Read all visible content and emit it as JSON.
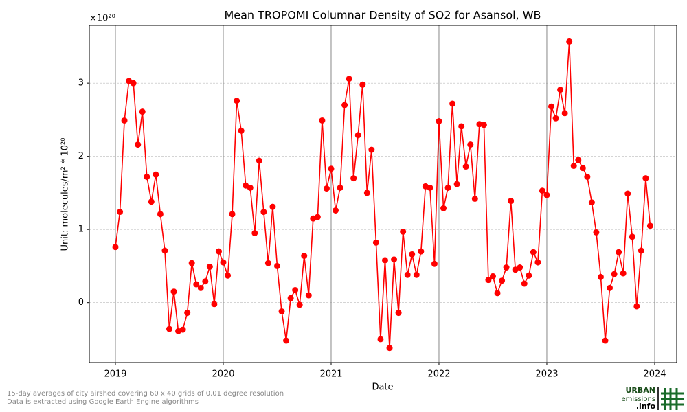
{
  "chart_data": {
    "type": "line",
    "title": "Mean TROPOMI Columnar Density of SO2 for Asansol, WB",
    "xlabel": "Date",
    "ylabel": "Unit: molecules/m² * 10²⁰",
    "y_offset_label": "×10²⁰",
    "color": "#ff0000",
    "grid": true,
    "xlim": [
      2018.758,
      2024.204
    ],
    "xticks": [
      2019,
      2020,
      2021,
      2022,
      2023,
      2024
    ],
    "ylim": [
      -0.82,
      3.79
    ],
    "yticks": [
      0,
      1,
      2,
      3
    ],
    "x": [
      2019.0,
      2019.0417,
      2019.0833,
      2019.125,
      2019.1667,
      2019.2083,
      2019.25,
      2019.2917,
      2019.3333,
      2019.375,
      2019.4167,
      2019.4583,
      2019.5,
      2019.5417,
      2019.5833,
      2019.625,
      2019.6667,
      2019.7083,
      2019.75,
      2019.7917,
      2019.8333,
      2019.875,
      2019.9167,
      2019.9583,
      2020.0,
      2020.0417,
      2020.0833,
      2020.125,
      2020.1667,
      2020.2083,
      2020.25,
      2020.2917,
      2020.3333,
      2020.375,
      2020.4167,
      2020.4583,
      2020.5,
      2020.5417,
      2020.5833,
      2020.625,
      2020.6667,
      2020.7083,
      2020.75,
      2020.7917,
      2020.8333,
      2020.875,
      2020.9167,
      2020.9583,
      2021.0,
      2021.0417,
      2021.0833,
      2021.125,
      2021.1667,
      2021.2083,
      2021.25,
      2021.2917,
      2021.3333,
      2021.375,
      2021.4167,
      2021.4583,
      2021.5,
      2021.5417,
      2021.5833,
      2021.625,
      2021.6667,
      2021.7083,
      2021.75,
      2021.7917,
      2021.8333,
      2021.875,
      2021.9167,
      2021.9583,
      2022.0,
      2022.0417,
      2022.0833,
      2022.125,
      2022.1667,
      2022.2083,
      2022.25,
      2022.2917,
      2022.3333,
      2022.375,
      2022.4167,
      2022.4583,
      2022.5,
      2022.5417,
      2022.5833,
      2022.625,
      2022.6667,
      2022.7083,
      2022.75,
      2022.7917,
      2022.8333,
      2022.875,
      2022.9167,
      2022.9583,
      2023.0,
      2023.0417,
      2023.0833,
      2023.125,
      2023.1667,
      2023.2083,
      2023.25,
      2023.2917,
      2023.3333,
      2023.375,
      2023.4167,
      2023.4583,
      2023.5,
      2023.5417,
      2023.5833,
      2023.625,
      2023.6667,
      2023.7083,
      2023.75,
      2023.7917,
      2023.8333,
      2023.875,
      2023.9167,
      2023.9583
    ],
    "values": [
      0.76,
      1.24,
      2.49,
      3.03,
      3.0,
      2.16,
      2.61,
      1.72,
      1.38,
      1.75,
      1.21,
      0.71,
      -0.36,
      0.15,
      -0.39,
      -0.37,
      -0.14,
      0.54,
      0.25,
      0.2,
      0.29,
      0.49,
      -0.02,
      0.7,
      0.55,
      0.37,
      1.21,
      2.76,
      2.35,
      1.6,
      1.57,
      0.95,
      1.94,
      1.24,
      0.54,
      1.31,
      0.5,
      -0.12,
      -0.52,
      0.06,
      0.17,
      -0.03,
      0.64,
      0.1,
      1.15,
      1.17,
      2.49,
      1.56,
      1.83,
      1.26,
      1.57,
      2.7,
      3.06,
      1.7,
      2.29,
      2.98,
      1.5,
      2.09,
      0.82,
      -0.5,
      0.58,
      -0.62,
      0.59,
      -0.14,
      0.97,
      0.38,
      0.66,
      0.38,
      0.7,
      1.59,
      1.57,
      0.53,
      2.48,
      1.29,
      1.57,
      2.72,
      1.62,
      2.41,
      1.86,
      2.16,
      1.42,
      2.44,
      2.43,
      0.31,
      0.36,
      0.13,
      0.3,
      0.48,
      1.39,
      0.45,
      0.48,
      0.26,
      0.37,
      0.69,
      0.55,
      1.53,
      1.47,
      2.68,
      2.52,
      2.91,
      2.59,
      3.57,
      1.87,
      1.95,
      1.84,
      1.72,
      1.37,
      0.96,
      0.35,
      -0.52,
      0.2,
      0.39,
      0.69,
      0.4,
      1.49,
      0.9,
      -0.05,
      0.71,
      1.7,
      1.05
    ],
    "footnote": [
      "15-day averages of city airshed covering 60 x 40 grids of 0.01 degree resolution",
      "Data is extracted using Google Earth Engine algorithms"
    ],
    "logo": [
      "URBAN",
      "emissions",
      ".info"
    ]
  }
}
